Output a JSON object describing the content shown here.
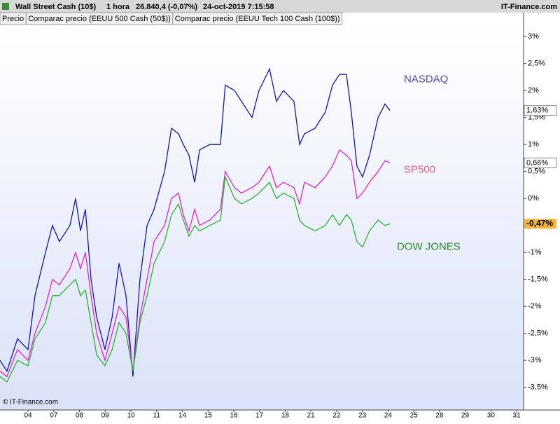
{
  "header": {
    "instrument": "Wall Street Cash (10$)",
    "interval": "1 hora",
    "quote": "26.840,4 (-0,07%)",
    "datetime": "24-oct-2019 7:15:58",
    "brand": "IT-Finance.com"
  },
  "tabs": [
    "Precio",
    "Comparac precio (EEUU 500 Cash (50$))",
    "Comparac precio (EEUU Tech 100 Cash (100$))"
  ],
  "footer": "© IT-Finance.com",
  "chart_data": {
    "type": "line",
    "x": [
      -1.09,
      -0.82,
      -0.41,
      0,
      0.27,
      0.68,
      0.95,
      1.22,
      1.63,
      1.85,
      2.04,
      2.23,
      2.45,
      2.67,
      2.99,
      3.27,
      3.54,
      3.81,
      4.08,
      4.35,
      4.63,
      4.9,
      5.31,
      5.58,
      5.85,
      6.04,
      6.26,
      6.48,
      6.67,
      7.07,
      7.48,
      7.67,
      8.03,
      8.3,
      8.71,
      8.98,
      9.39,
      9.66,
      9.93,
      10.34,
      10.56,
      10.75,
      11.16,
      11.56,
      11.84,
      12.11,
      12.38,
      12.57,
      12.79,
      13.01,
      13.28,
      13.61,
      13.88,
      14.07
    ],
    "xlim": [
      -1.09,
      19.27
    ],
    "xticks": [
      {
        "value": 0,
        "label": "04"
      },
      {
        "value": 1,
        "label": "07"
      },
      {
        "value": 2,
        "label": "08"
      },
      {
        "value": 3,
        "label": "09"
      },
      {
        "value": 4,
        "label": "10"
      },
      {
        "value": 5,
        "label": "11"
      },
      {
        "value": 6,
        "label": "14"
      },
      {
        "value": 7,
        "label": "15"
      },
      {
        "value": 8,
        "label": "16"
      },
      {
        "value": 9,
        "label": "17"
      },
      {
        "value": 10,
        "label": "18"
      },
      {
        "value": 11,
        "label": "21"
      },
      {
        "value": 12,
        "label": "22"
      },
      {
        "value": 13,
        "label": "23"
      },
      {
        "value": 14,
        "label": "24"
      },
      {
        "value": 15,
        "label": "25"
      },
      {
        "value": 16,
        "label": "28"
      },
      {
        "value": 17,
        "label": "29"
      },
      {
        "value": 18,
        "label": "30"
      },
      {
        "value": 19,
        "label": "31"
      }
    ],
    "ylim": [
      -3.92,
      3.21
    ],
    "yticks": [
      {
        "value": 3,
        "label": "3%"
      },
      {
        "value": 2.5,
        "label": "2,5%"
      },
      {
        "value": 2,
        "label": "2%"
      },
      {
        "value": 1.5,
        "label": "1,5%"
      },
      {
        "value": 1,
        "label": "1%"
      },
      {
        "value": 0.5,
        "label": "0,5%"
      },
      {
        "value": 0,
        "label": "0%"
      },
      {
        "value": -0.5,
        "label": "-0,5%"
      },
      {
        "value": -1,
        "label": "-1%"
      },
      {
        "value": -1.5,
        "label": "-1,5%"
      },
      {
        "value": -2,
        "label": "-2%"
      },
      {
        "value": -2.5,
        "label": "-2,5%"
      },
      {
        "value": -3,
        "label": "-3%"
      },
      {
        "value": -3.5,
        "label": "-3,5%"
      }
    ],
    "grid": false,
    "series": [
      {
        "name": "NASDAQ",
        "color": "#1414b4",
        "label_color": "#4a4ab8",
        "values": [
          -3.0,
          -3.2,
          -2.6,
          -2.8,
          -1.8,
          -1.0,
          -0.5,
          -0.8,
          -0.5,
          0.0,
          -0.6,
          -0.2,
          -1.5,
          -2.2,
          -2.8,
          -2.2,
          -1.2,
          -1.8,
          -3.3,
          -1.5,
          -0.5,
          -0.2,
          0.5,
          1.3,
          1.2,
          1.0,
          0.8,
          0.3,
          0.9,
          1.0,
          1.0,
          2.1,
          2.0,
          1.8,
          1.5,
          2.0,
          2.4,
          1.8,
          2.0,
          1.8,
          1.0,
          1.2,
          1.3,
          1.6,
          2.1,
          2.3,
          2.3,
          1.6,
          0.6,
          0.4,
          0.8,
          1.5,
          1.75,
          1.63
        ],
        "value_labels": [
          null,
          null,
          null,
          null,
          null,
          null,
          null,
          null,
          null,
          null,
          null,
          null,
          null,
          null,
          null,
          null,
          null,
          null,
          null,
          null,
          null,
          null,
          null,
          null,
          null,
          null,
          null,
          null,
          null,
          null,
          null,
          null,
          null,
          null,
          null,
          null,
          null,
          null,
          null,
          null,
          null,
          null,
          null,
          null,
          null,
          null,
          null,
          null,
          null,
          null,
          null,
          null,
          null,
          "1,63%"
        ]
      },
      {
        "name": "SP500",
        "color": "#e020d8",
        "label_color": "#e0607c",
        "values": [
          -3.2,
          -3.3,
          -2.8,
          -3.0,
          -2.5,
          -2.0,
          -1.5,
          -1.6,
          -1.3,
          -1.0,
          -1.3,
          -1.0,
          -1.8,
          -2.5,
          -3.0,
          -2.5,
          -2.0,
          -2.2,
          -3.2,
          -2.2,
          -1.5,
          -0.8,
          -0.5,
          0.0,
          0.1,
          -0.3,
          -0.6,
          -0.2,
          -0.5,
          -0.4,
          -0.2,
          0.5,
          0.2,
          0.1,
          0.2,
          0.3,
          0.6,
          0.2,
          0.3,
          0.2,
          -0.1,
          0.3,
          0.2,
          0.4,
          0.6,
          0.9,
          0.8,
          0.7,
          0.0,
          0.1,
          0.3,
          0.5,
          0.7,
          0.66
        ],
        "value_labels": [
          null,
          null,
          null,
          null,
          null,
          null,
          null,
          null,
          null,
          null,
          null,
          null,
          null,
          null,
          null,
          null,
          null,
          null,
          null,
          null,
          null,
          null,
          null,
          null,
          null,
          null,
          null,
          null,
          null,
          null,
          null,
          null,
          null,
          null,
          null,
          null,
          null,
          null,
          null,
          null,
          null,
          null,
          null,
          null,
          null,
          null,
          null,
          null,
          null,
          null,
          null,
          null,
          null,
          "0,66%"
        ]
      },
      {
        "name": "DOW JONES",
        "color": "#28b428",
        "label_color": "#2a8a2a",
        "values": [
          -3.3,
          -3.4,
          -3.0,
          -3.1,
          -2.6,
          -2.3,
          -1.8,
          -1.8,
          -1.6,
          -1.5,
          -1.8,
          -1.7,
          -2.3,
          -2.9,
          -3.1,
          -2.8,
          -2.3,
          -2.5,
          -3.2,
          -2.3,
          -1.8,
          -1.2,
          -0.8,
          -0.3,
          -0.1,
          -0.4,
          -0.7,
          -0.5,
          -0.6,
          -0.5,
          -0.4,
          0.4,
          0.0,
          -0.1,
          0.0,
          0.1,
          0.3,
          0.0,
          0.1,
          0.0,
          -0.4,
          -0.5,
          -0.6,
          -0.5,
          -0.3,
          -0.5,
          -0.3,
          -0.4,
          -0.8,
          -0.9,
          -0.6,
          -0.4,
          -0.5,
          -0.47
        ],
        "value_labels": [
          null,
          null,
          null,
          null,
          null,
          null,
          null,
          null,
          null,
          null,
          null,
          null,
          null,
          null,
          null,
          null,
          null,
          null,
          null,
          null,
          null,
          null,
          null,
          null,
          null,
          null,
          null,
          null,
          null,
          null,
          null,
          null,
          null,
          null,
          null,
          null,
          null,
          null,
          null,
          null,
          null,
          null,
          null,
          null,
          null,
          null,
          null,
          null,
          null,
          null,
          null,
          null,
          null,
          "-0,47%"
        ],
        "highlight": "#f4b43c"
      }
    ]
  }
}
